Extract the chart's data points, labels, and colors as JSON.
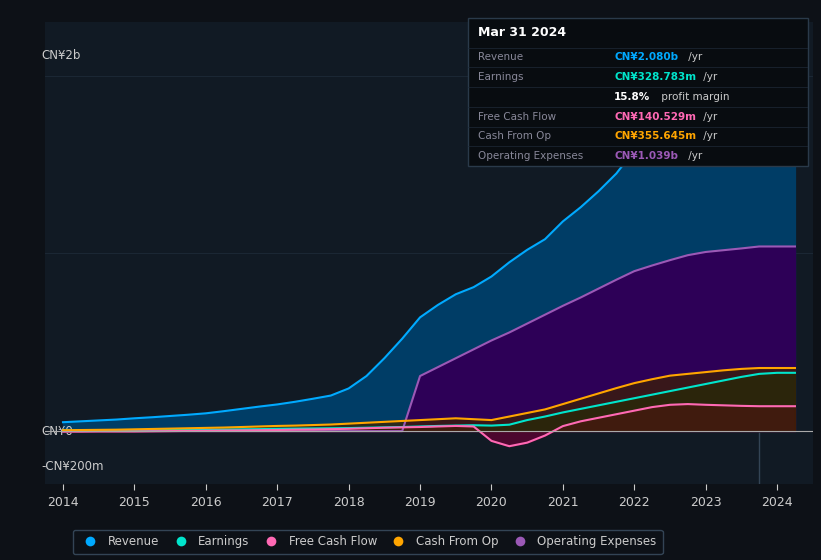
{
  "bg_color": "#0d1117",
  "plot_bg_color": "#111a24",
  "text_color": "#cccccc",
  "title_text": "Mar 31 2024",
  "years": [
    2014,
    2014.25,
    2014.5,
    2014.75,
    2015,
    2015.25,
    2015.5,
    2015.75,
    2016,
    2016.25,
    2016.5,
    2016.75,
    2017,
    2017.25,
    2017.5,
    2017.75,
    2018,
    2018.25,
    2018.5,
    2018.75,
    2019,
    2019.25,
    2019.5,
    2019.75,
    2020,
    2020.25,
    2020.5,
    2020.75,
    2021,
    2021.25,
    2021.5,
    2021.75,
    2022,
    2022.25,
    2022.5,
    2022.75,
    2023,
    2023.25,
    2023.5,
    2023.75,
    2024,
    2024.25
  ],
  "revenue": [
    50,
    55,
    60,
    65,
    72,
    78,
    85,
    92,
    100,
    112,
    125,
    138,
    150,
    165,
    182,
    200,
    240,
    310,
    410,
    520,
    640,
    710,
    770,
    810,
    870,
    950,
    1020,
    1080,
    1180,
    1260,
    1350,
    1450,
    1580,
    1660,
    1730,
    1800,
    1880,
    1950,
    2010,
    2055,
    2080,
    2080
  ],
  "earnings": [
    3,
    3,
    4,
    4,
    5,
    5,
    6,
    7,
    8,
    9,
    10,
    11,
    13,
    14,
    15,
    16,
    17,
    19,
    21,
    23,
    26,
    29,
    31,
    33,
    31,
    36,
    62,
    82,
    105,
    125,
    145,
    165,
    185,
    205,
    225,
    245,
    265,
    285,
    305,
    322,
    328,
    328
  ],
  "free_cash_flow": [
    -3,
    -3,
    -2,
    -2,
    -2,
    -1,
    0,
    1,
    2,
    3,
    4,
    5,
    6,
    8,
    9,
    11,
    13,
    16,
    19,
    21,
    23,
    26,
    29,
    26,
    -55,
    -85,
    -65,
    -25,
    28,
    55,
    75,
    95,
    115,
    135,
    148,
    152,
    148,
    145,
    142,
    140,
    140,
    140
  ],
  "cash_from_op": [
    5,
    6,
    7,
    8,
    10,
    12,
    14,
    16,
    18,
    20,
    23,
    26,
    29,
    31,
    34,
    37,
    42,
    47,
    52,
    57,
    62,
    67,
    72,
    67,
    62,
    82,
    102,
    122,
    152,
    182,
    212,
    242,
    270,
    292,
    312,
    322,
    332,
    342,
    350,
    355,
    355,
    355
  ],
  "operating_expenses": [
    0,
    0,
    0,
    0,
    0,
    0,
    0,
    0,
    0,
    0,
    0,
    0,
    0,
    0,
    0,
    0,
    0,
    0,
    0,
    0,
    310,
    360,
    410,
    460,
    510,
    555,
    605,
    655,
    705,
    752,
    802,
    852,
    900,
    932,
    962,
    990,
    1008,
    1018,
    1028,
    1039,
    1039,
    1039
  ],
  "legend": [
    {
      "label": "Revenue",
      "color": "#00aaff"
    },
    {
      "label": "Earnings",
      "color": "#00e5cc"
    },
    {
      "label": "Free Cash Flow",
      "color": "#ff69b4"
    },
    {
      "label": "Cash From Op",
      "color": "#ffa500"
    },
    {
      "label": "Operating Expenses",
      "color": "#9b59b6"
    }
  ],
  "ylabel_top": "CN¥2b",
  "ylabel_zero": "CN¥0",
  "ylabel_bottom": "-CN¥200m",
  "ylim_min": -300,
  "ylim_max": 2300,
  "xlim_min": 2013.75,
  "xlim_max": 2024.5,
  "xticks": [
    2014,
    2015,
    2016,
    2017,
    2018,
    2019,
    2020,
    2021,
    2022,
    2023,
    2024
  ],
  "highlight_x": 2023.75,
  "tooltip_rows": [
    {
      "label": "Mar 31 2024",
      "value": null,
      "value_color": null,
      "is_header": true
    },
    {
      "label": "Revenue",
      "value": "CN¥2.080b /yr",
      "value_color": "#00aaff",
      "is_header": false
    },
    {
      "label": "Earnings",
      "value": "CN¥328.783m /yr",
      "value_color": "#00e5cc",
      "is_header": false
    },
    {
      "label": "",
      "value": "15.8% profit margin",
      "value_color": "#dddddd",
      "is_header": false,
      "bold_prefix": "15.8%"
    },
    {
      "label": "Free Cash Flow",
      "value": "CN¥140.529m /yr",
      "value_color": "#ff69b4",
      "is_header": false
    },
    {
      "label": "Cash From Op",
      "value": "CN¥355.645m /yr",
      "value_color": "#ffa500",
      "is_header": false
    },
    {
      "label": "Operating Expenses",
      "value": "CN¥1.039b /yr",
      "value_color": "#9b59b6",
      "is_header": false
    }
  ]
}
